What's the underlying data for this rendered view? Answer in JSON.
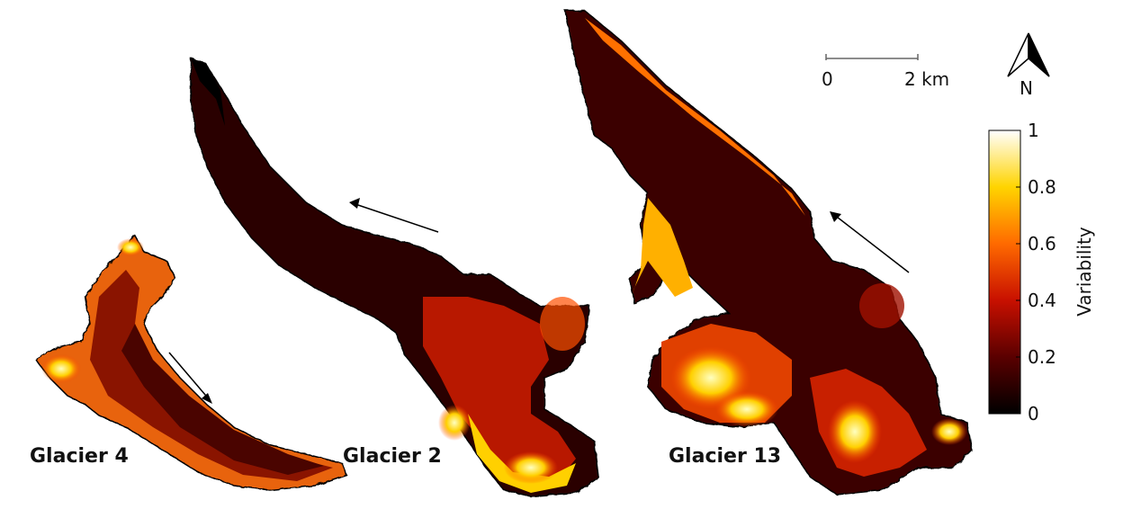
{
  "glaciers": [
    {
      "label": "Glacier 4"
    },
    {
      "label": "Glacier 2"
    },
    {
      "label": "Glacier 13"
    }
  ],
  "scale_bar": {
    "start_label": "0",
    "end_label": "2 km"
  },
  "north_arrow": {
    "label": "N"
  },
  "colorbar": {
    "title": "Variability",
    "ticks": [
      "0",
      "0.2",
      "0.4",
      "0.6",
      "0.8",
      "1"
    ],
    "colormap": "hot",
    "range": [
      0,
      1
    ]
  }
}
